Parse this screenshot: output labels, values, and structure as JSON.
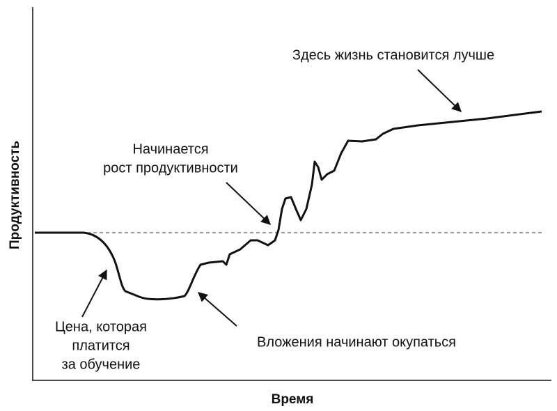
{
  "chart_data": {
    "type": "line",
    "x_label": "Время",
    "y_label": "Продуктивность",
    "annotations": [
      [
        "Здесь жизнь становится лучше"
      ],
      [
        "Начинается",
        "рост продуктивности"
      ],
      [
        "Цена, которая",
        "платится",
        "за обучение"
      ],
      [
        "Вложения начинают окупаться"
      ]
    ]
  }
}
